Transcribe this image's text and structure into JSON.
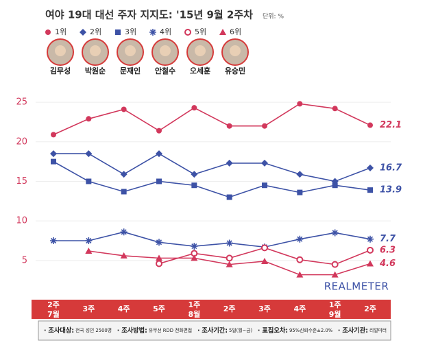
{
  "chart_data": {
    "type": "line",
    "title": "여야 19대 대선 주자 지지도: '15년 9월 2주차",
    "unit": "단위: %",
    "candidates": [
      "김무성",
      "박원순",
      "문재인",
      "안철수",
      "오세훈",
      "유승민"
    ],
    "categories": [
      "2주",
      "3주",
      "4주",
      "5주",
      "1주",
      "2주",
      "3주",
      "4주",
      "1주",
      "2주"
    ],
    "months": [
      "7월",
      null,
      null,
      null,
      "8월",
      null,
      null,
      null,
      "9월",
      null
    ],
    "ylim": [
      1,
      27
    ],
    "yticks": [
      5,
      10,
      15,
      20,
      25
    ],
    "grid": true,
    "series": [
      {
        "name": "1위",
        "color": "#d2385c",
        "marker": "circle",
        "values": [
          20.9,
          22.9,
          24.1,
          21.4,
          24.3,
          22.0,
          22.0,
          24.8,
          24.2,
          22.1
        ]
      },
      {
        "name": "2위",
        "color": "#3d52a6",
        "marker": "diamond",
        "values": [
          18.5,
          18.5,
          15.9,
          18.5,
          15.9,
          17.3,
          17.3,
          15.9,
          15.0,
          16.7
        ]
      },
      {
        "name": "3위",
        "color": "#3d52a6",
        "marker": "square",
        "values": [
          17.5,
          15.0,
          13.7,
          15.0,
          14.5,
          13.0,
          14.5,
          13.6,
          14.5,
          13.9
        ]
      },
      {
        "name": "4위",
        "color": "#3d52a6",
        "marker": "asterisk",
        "values": [
          7.5,
          7.5,
          8.6,
          7.3,
          6.8,
          7.2,
          6.7,
          7.7,
          8.5,
          7.7
        ]
      },
      {
        "name": "5위",
        "color": "#d2385c",
        "marker": "open-circle",
        "values": [
          null,
          null,
          null,
          4.6,
          5.9,
          5.3,
          6.6,
          5.1,
          4.5,
          6.3
        ]
      },
      {
        "name": "6위",
        "color": "#d2385c",
        "marker": "triangle",
        "values": [
          null,
          6.2,
          5.6,
          5.3,
          5.3,
          4.5,
          4.9,
          3.2,
          3.2,
          4.6
        ]
      }
    ],
    "watermark": "REALMETER",
    "notes": [
      {
        "label": "조사대상:",
        "text": "전국 성인 2500명"
      },
      {
        "label": "조사방법:",
        "text": "유무선 RDD 전화면접"
      },
      {
        "label": "조사기간:",
        "text": "5일(월~금)"
      },
      {
        "label": "표집오차:",
        "text": "95%신뢰수준±2.0%"
      },
      {
        "label": "조사기관:",
        "text": "리얼미터"
      }
    ]
  }
}
